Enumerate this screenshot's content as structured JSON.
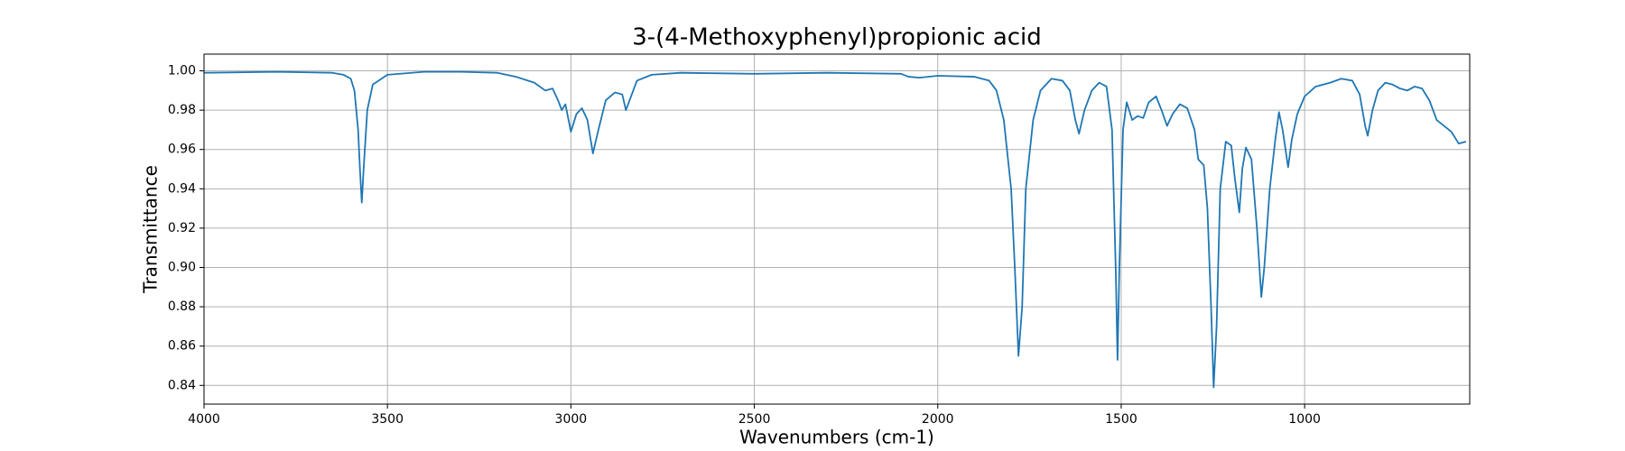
{
  "chart_data": {
    "type": "line",
    "title": "3-(4-Methoxyphenyl)propionic acid",
    "x_label": "Wavenumbers (cm-1)",
    "y_label": "Transmittance",
    "color": "#1f77b4",
    "grid": true,
    "xlim": [
      4000,
      550
    ],
    "ylim": [
      0.8305,
      1.0085
    ],
    "xticks": [
      4000,
      3500,
      3000,
      2500,
      2000,
      1500,
      1000
    ],
    "yticks": [
      0.84,
      0.86,
      0.88,
      {
        "value": 0.9,
        "label": "0.90"
      },
      0.92,
      0.94,
      0.96,
      0.98,
      {
        "value": 1,
        "label": "1.00"
      }
    ],
    "x": [
      4000,
      3800,
      3650,
      3620,
      3600,
      3590,
      3580,
      3575,
      3570,
      3565,
      3555,
      3540,
      3500,
      3400,
      3300,
      3200,
      3150,
      3100,
      3070,
      3050,
      3035,
      3025,
      3015,
      3000,
      2985,
      2970,
      2955,
      2940,
      2925,
      2905,
      2880,
      2860,
      2850,
      2840,
      2820,
      2780,
      2700,
      2500,
      2300,
      2100,
      2080,
      2050,
      2000,
      1900,
      1860,
      1840,
      1820,
      1800,
      1790,
      1780,
      1770,
      1760,
      1740,
      1720,
      1690,
      1660,
      1640,
      1625,
      1615,
      1600,
      1580,
      1560,
      1540,
      1525,
      1515,
      1510,
      1505,
      1495,
      1485,
      1470,
      1455,
      1440,
      1425,
      1405,
      1390,
      1375,
      1360,
      1340,
      1320,
      1300,
      1290,
      1275,
      1265,
      1255,
      1248,
      1240,
      1230,
      1215,
      1200,
      1190,
      1178,
      1170,
      1160,
      1145,
      1130,
      1118,
      1110,
      1095,
      1080,
      1070,
      1060,
      1045,
      1035,
      1020,
      1000,
      970,
      930,
      900,
      870,
      850,
      835,
      828,
      815,
      800,
      780,
      760,
      740,
      720,
      700,
      680,
      660,
      640,
      620,
      600,
      580,
      560
    ],
    "values": [
      0.999,
      0.9995,
      0.999,
      0.998,
      0.996,
      0.99,
      0.97,
      0.95,
      0.933,
      0.95,
      0.98,
      0.993,
      0.998,
      0.9995,
      0.9995,
      0.999,
      0.997,
      0.994,
      0.99,
      0.991,
      0.985,
      0.98,
      0.983,
      0.969,
      0.978,
      0.981,
      0.975,
      0.958,
      0.97,
      0.985,
      0.989,
      0.988,
      0.98,
      0.985,
      0.995,
      0.998,
      0.999,
      0.9985,
      0.999,
      0.9985,
      0.997,
      0.9965,
      0.9975,
      0.997,
      0.995,
      0.99,
      0.975,
      0.94,
      0.9,
      0.855,
      0.88,
      0.94,
      0.975,
      0.99,
      0.996,
      0.995,
      0.99,
      0.975,
      0.968,
      0.98,
      0.99,
      0.994,
      0.992,
      0.97,
      0.9,
      0.853,
      0.9,
      0.97,
      0.984,
      0.975,
      0.977,
      0.976,
      0.984,
      0.987,
      0.98,
      0.972,
      0.978,
      0.983,
      0.981,
      0.97,
      0.955,
      0.952,
      0.93,
      0.88,
      0.839,
      0.87,
      0.94,
      0.964,
      0.962,
      0.945,
      0.928,
      0.95,
      0.961,
      0.955,
      0.92,
      0.885,
      0.9,
      0.94,
      0.965,
      0.979,
      0.97,
      0.951,
      0.965,
      0.978,
      0.987,
      0.992,
      0.994,
      0.996,
      0.995,
      0.988,
      0.972,
      0.967,
      0.98,
      0.99,
      0.994,
      0.993,
      0.991,
      0.99,
      0.992,
      0.991,
      0.985,
      0.975,
      0.972,
      0.969,
      0.963,
      0.964
    ]
  }
}
